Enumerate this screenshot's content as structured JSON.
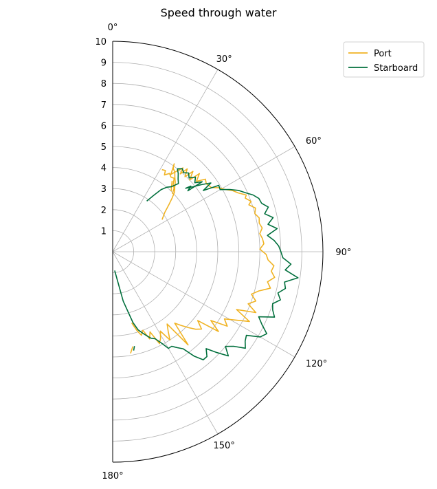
{
  "chart_data": {
    "type": "line",
    "projection": "polar",
    "title": "Speed through water",
    "theta_direction": "clockwise",
    "theta_zero": "top",
    "theta_range_deg": [
      0,
      180
    ],
    "r_range": [
      0,
      10
    ],
    "grid": true,
    "legend_placement": "top-right",
    "r_ticks": [
      1,
      2,
      3,
      4,
      5,
      6,
      7,
      8,
      9,
      10
    ],
    "theta_ticks": [
      {
        "deg": 0,
        "label": "0°"
      },
      {
        "deg": 30,
        "label": "30°"
      },
      {
        "deg": 60,
        "label": "60°"
      },
      {
        "deg": 90,
        "label": "90°"
      },
      {
        "deg": 120,
        "label": "120°"
      },
      {
        "deg": 150,
        "label": "150°"
      },
      {
        "deg": 180,
        "label": "180°"
      }
    ],
    "series": [
      {
        "name": "Port",
        "color": "#f0b323",
        "segments": [
          [
            [
              46,
              3.95
            ],
            [
              44,
              4.2
            ],
            [
              42,
              4.3
            ],
            [
              40,
              4.55
            ],
            [
              38,
              4.5
            ],
            [
              36,
              4.6
            ],
            [
              34,
              4.4
            ],
            [
              33,
              4.6
            ],
            [
              31,
              4.55
            ]
          ],
          [
            [
              44,
              4.0
            ],
            [
              40,
              4.4
            ]
          ],
          [
            [
              57,
              2.8
            ],
            [
              53,
              3.1
            ],
            [
              50,
              3.5
            ],
            [
              48,
              3.8
            ],
            [
              46,
              4.1
            ],
            [
              44,
              4.25
            ],
            [
              42,
              4.45
            ],
            [
              40,
              4.6
            ],
            [
              38,
              4.8
            ],
            [
              36,
              4.9
            ],
            [
              35,
              5.1
            ],
            [
              37,
              4.6
            ],
            [
              39,
              5.0
            ],
            [
              40,
              5.2
            ],
            [
              41,
              4.9
            ],
            [
              42,
              5.3
            ],
            [
              44,
              4.95
            ],
            [
              45,
              5.4
            ],
            [
              47,
              5.0
            ],
            [
              48,
              5.55
            ],
            [
              50,
              5.2
            ],
            [
              52,
              5.6
            ],
            [
              54,
              5.5
            ],
            [
              57,
              5.6
            ],
            [
              59,
              5.9
            ],
            [
              61,
              6.1
            ],
            [
              63,
              6.4
            ],
            [
              65,
              6.6
            ],
            [
              67,
              6.9
            ],
            [
              68,
              6.8
            ],
            [
              70,
              7.0
            ],
            [
              71,
              6.85
            ],
            [
              73,
              7.1
            ],
            [
              75,
              7.0
            ],
            [
              77,
              7.15
            ],
            [
              79,
              7.1
            ],
            [
              81,
              7.2
            ],
            [
              83,
              7.05
            ],
            [
              85,
              7.15
            ],
            [
              87,
              7.2
            ],
            [
              89,
              7.0
            ],
            [
              91,
              7.3
            ],
            [
              93,
              7.4
            ],
            [
              95,
              7.7
            ],
            [
              97,
              7.6
            ],
            [
              99,
              7.8
            ],
            [
              101,
              7.5
            ],
            [
              103,
              7.7
            ],
            [
              105,
              7.2
            ],
            [
              107,
              6.9
            ],
            [
              109,
              7.2
            ],
            [
              111,
              6.9
            ],
            [
              113,
              7.4
            ],
            [
              115,
              6.5
            ],
            [
              117,
              7.3
            ],
            [
              119,
              6.7
            ],
            [
              121,
              6.2
            ],
            [
              123,
              6.5
            ],
            [
              125,
              5.7
            ],
            [
              127,
              6.3
            ],
            [
              129,
              5.2
            ],
            [
              131,
              5.6
            ],
            [
              133,
              5.4
            ],
            [
              135,
              5.1
            ],
            [
              137,
              4.8
            ],
            [
              139,
              4.5
            ],
            [
              141,
              5.7
            ],
            [
              143,
              4.3
            ],
            [
              145,
              4.6
            ],
            [
              147,
              5.0
            ],
            [
              149,
              4.4
            ],
            [
              151,
              4.7
            ],
            [
              153,
              4.9
            ],
            [
              155,
              4.2
            ],
            [
              157,
              4.5
            ],
            [
              159,
              4.0
            ],
            [
              161,
              4.2
            ],
            [
              163,
              3.9
            ],
            [
              165,
              3.5
            ]
          ],
          [
            [
              168,
              4.6
            ],
            [
              170,
              4.9
            ]
          ]
        ]
      },
      {
        "name": "Starboard",
        "color": "#006f3c",
        "segments": [
          [
            [
              34,
              2.9
            ],
            [
              36,
              3.3
            ],
            [
              38,
              3.75
            ],
            [
              40,
              4.0
            ],
            [
              42,
              4.15
            ],
            [
              44,
              4.5
            ],
            [
              42,
              4.65
            ],
            [
              40,
              4.85
            ],
            [
              38,
              5.0
            ],
            [
              40,
              5.15
            ],
            [
              42,
              5.05
            ],
            [
              44,
              5.2
            ],
            [
              46,
              5.05
            ],
            [
              48,
              5.3
            ],
            [
              50,
              5.1
            ],
            [
              52,
              5.4
            ],
            [
              51,
              4.6
            ],
            [
              50,
              4.85
            ],
            [
              49,
              4.6
            ],
            [
              51,
              4.9
            ],
            [
              53,
              5.3
            ],
            [
              55,
              5.7
            ],
            [
              56,
              5.2
            ],
            [
              58,
              5.95
            ],
            [
              60,
              5.9
            ],
            [
              62,
              6.3
            ],
            [
              64,
              6.65
            ],
            [
              66,
              6.9
            ],
            [
              68,
              7.2
            ],
            [
              70,
              7.4
            ],
            [
              72,
              7.45
            ],
            [
              74,
              7.7
            ],
            [
              76,
              7.45
            ],
            [
              78,
              7.8
            ],
            [
              80,
              7.5
            ],
            [
              82,
              7.9
            ],
            [
              84,
              7.4
            ],
            [
              86,
              7.7
            ],
            [
              88,
              7.9
            ],
            [
              90,
              8.0
            ],
            [
              92,
              8.1
            ],
            [
              94,
              8.5
            ],
            [
              96,
              8.25
            ],
            [
              98,
              8.9
            ],
            [
              100,
              8.3
            ],
            [
              102,
              8.4
            ],
            [
              104,
              8.1
            ],
            [
              106,
              8.3
            ],
            [
              108,
              8.0
            ],
            [
              110,
              8.1
            ],
            [
              112,
              8.3
            ],
            [
              114,
              7.6
            ],
            [
              116,
              7.9
            ],
            [
              118,
              8.3
            ],
            [
              120,
              8.1
            ],
            [
              122,
              7.5
            ],
            [
              124,
              7.6
            ],
            [
              126,
              7.8
            ],
            [
              128,
              7.3
            ],
            [
              130,
              7.0
            ],
            [
              132,
              7.4
            ],
            [
              134,
              6.9
            ],
            [
              136,
              6.4
            ],
            [
              138,
              6.7
            ],
            [
              140,
              6.7
            ],
            [
              142,
              6.3
            ],
            [
              144,
              5.7
            ],
            [
              146,
              5.5
            ],
            [
              148,
              5.3
            ],
            [
              150,
              5.3
            ],
            [
              152,
              4.9
            ],
            [
              154,
              4.6
            ],
            [
              156,
              4.5
            ],
            [
              157,
              4.4
            ],
            [
              158,
              4.3
            ],
            [
              160,
              4.1
            ],
            [
              162,
              3.9
            ],
            [
              164,
              3.5
            ],
            [
              168,
              2.4
            ],
            [
              174,
              0.9
            ]
          ],
          [
            [
              167,
              4.6
            ],
            [
              168,
              4.8
            ]
          ]
        ]
      }
    ]
  }
}
